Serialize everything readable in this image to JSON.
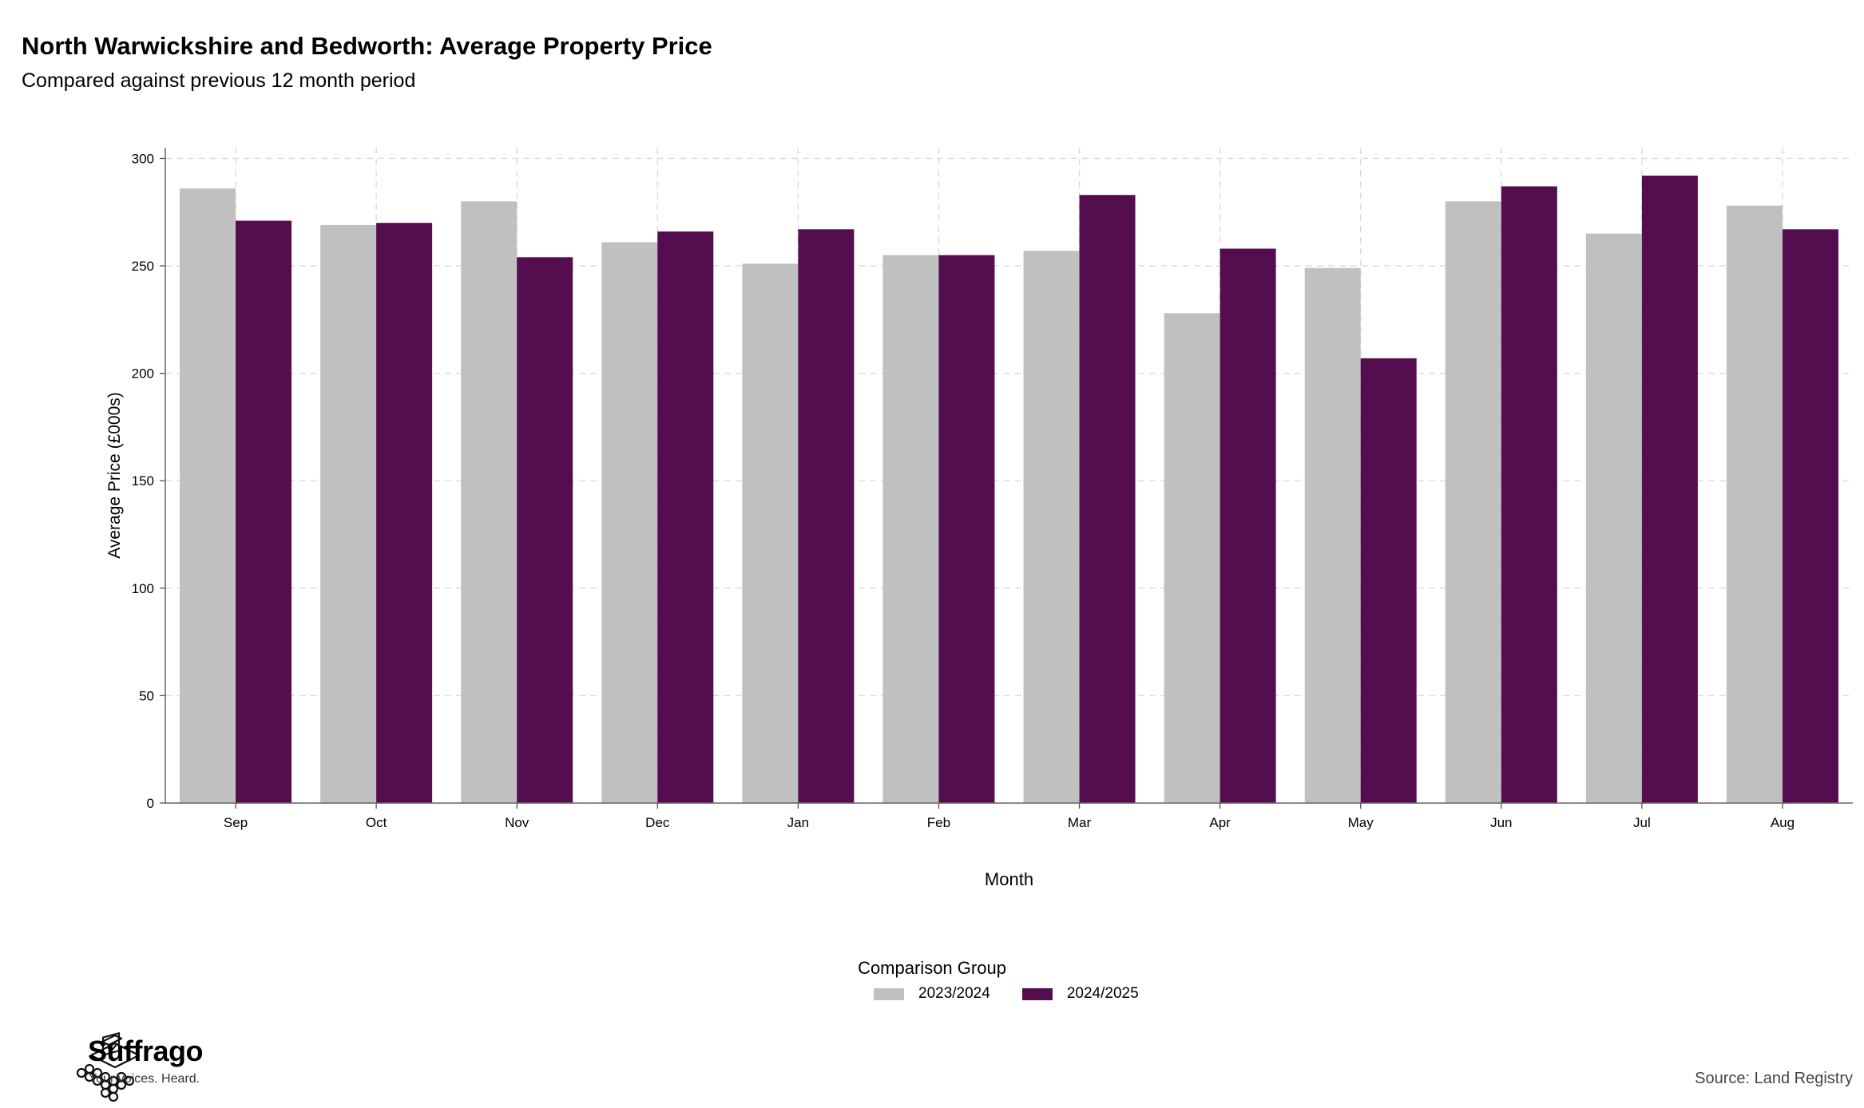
{
  "title": "North Warwickshire and Bedworth: Average Property Price",
  "subtitle": "Compared against previous 12 month period",
  "source": "Source: Land Registry",
  "brand": {
    "name": "Suffrago",
    "tagline": "Your voices. Heard."
  },
  "legend": {
    "title": "Comparison Group",
    "items": [
      {
        "label": "2023/2024",
        "color": "#c0c0c0"
      },
      {
        "label": "2024/2025",
        "color": "#540d4f"
      }
    ]
  },
  "chart_data": {
    "type": "bar",
    "title": "North Warwickshire and Bedworth: Average Property Price",
    "subtitle": "Compared against previous 12 month period",
    "xlabel": "Month",
    "ylabel": "Average Price (£000s)",
    "ylim": [
      0,
      300
    ],
    "yticks": [
      0,
      50,
      100,
      150,
      200,
      250,
      300
    ],
    "grid": true,
    "legend_position": "bottom",
    "categories": [
      "Sep",
      "Oct",
      "Nov",
      "Dec",
      "Jan",
      "Feb",
      "Mar",
      "Apr",
      "May",
      "Jun",
      "Jul",
      "Aug"
    ],
    "series": [
      {
        "name": "2023/2024",
        "color": "#c0c0c0",
        "values": [
          286,
          269,
          280,
          261,
          251,
          255,
          257,
          228,
          249,
          280,
          265,
          278
        ]
      },
      {
        "name": "2024/2025",
        "color": "#540d4f",
        "values": [
          271,
          270,
          254,
          266,
          267,
          255,
          283,
          258,
          207,
          287,
          292,
          267
        ]
      }
    ]
  }
}
